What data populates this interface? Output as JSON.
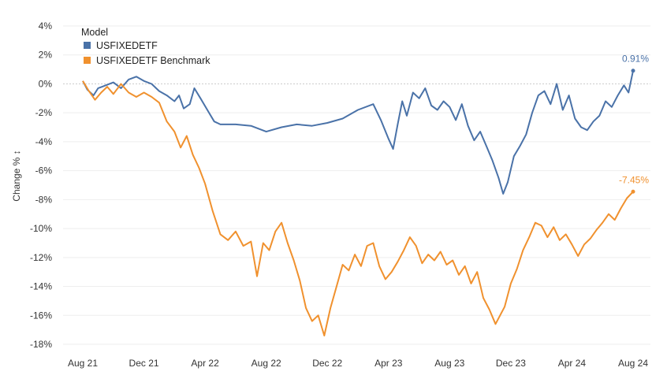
{
  "chart_data": {
    "type": "line",
    "title": "",
    "xlabel": "",
    "ylabel": "Change % ↕",
    "ylim": [
      -18,
      4
    ],
    "y_ticks": [
      4,
      2,
      0,
      -2,
      -4,
      -6,
      -8,
      -10,
      -12,
      -14,
      -16,
      -18
    ],
    "y_tick_labels": [
      "4%",
      "2%",
      "0%",
      "-2%",
      "-4%",
      "-6%",
      "-8%",
      "-10%",
      "-12%",
      "-14%",
      "-16%",
      "-18%"
    ],
    "x_range": [
      0,
      36
    ],
    "x_tick_labels": [
      {
        "month": 0,
        "label": "Aug 21"
      },
      {
        "month": 4,
        "label": "Dec 21"
      },
      {
        "month": 8,
        "label": "Apr 22"
      },
      {
        "month": 12,
        "label": "Aug 22"
      },
      {
        "month": 16,
        "label": "Dec 22"
      },
      {
        "month": 20,
        "label": "Apr 23"
      },
      {
        "month": 24,
        "label": "Aug 23"
      },
      {
        "month": 28,
        "label": "Dec 23"
      },
      {
        "month": 32,
        "label": "Apr 24"
      },
      {
        "month": 36,
        "label": "Aug 24"
      }
    ],
    "legend": {
      "title": "Model",
      "position": "top-left"
    },
    "series": [
      {
        "name": "USFIXEDETF",
        "color": "#4a72a8",
        "end_label": "0.91%",
        "points": [
          [
            0,
            0.2
          ],
          [
            0.3,
            -0.4
          ],
          [
            0.7,
            -0.8
          ],
          [
            1.0,
            -0.3
          ],
          [
            1.5,
            -0.1
          ],
          [
            2.0,
            0.1
          ],
          [
            2.5,
            -0.3
          ],
          [
            3.0,
            0.3
          ],
          [
            3.5,
            0.5
          ],
          [
            4.0,
            0.2
          ],
          [
            4.5,
            0.0
          ],
          [
            5.0,
            -0.5
          ],
          [
            5.5,
            -0.8
          ],
          [
            6.0,
            -1.2
          ],
          [
            6.3,
            -0.8
          ],
          [
            6.6,
            -1.7
          ],
          [
            7.0,
            -1.4
          ],
          [
            7.3,
            -0.3
          ],
          [
            7.7,
            -1.0
          ],
          [
            8.2,
            -1.9
          ],
          [
            8.6,
            -2.6
          ],
          [
            9.0,
            -2.8
          ],
          [
            10.0,
            -2.8
          ],
          [
            11.0,
            -2.9
          ],
          [
            12.0,
            -3.3
          ],
          [
            13.0,
            -3.0
          ],
          [
            14.0,
            -2.8
          ],
          [
            15.0,
            -2.9
          ],
          [
            16.0,
            -2.7
          ],
          [
            17.0,
            -2.4
          ],
          [
            18.0,
            -1.8
          ],
          [
            19.0,
            -1.4
          ],
          [
            19.5,
            -2.5
          ],
          [
            20.0,
            -3.8
          ],
          [
            20.3,
            -4.5
          ],
          [
            20.6,
            -2.8
          ],
          [
            20.9,
            -1.2
          ],
          [
            21.2,
            -2.2
          ],
          [
            21.6,
            -0.6
          ],
          [
            22.0,
            -1.0
          ],
          [
            22.4,
            -0.3
          ],
          [
            22.8,
            -1.5
          ],
          [
            23.2,
            -1.8
          ],
          [
            23.6,
            -1.2
          ],
          [
            24.0,
            -1.6
          ],
          [
            24.4,
            -2.5
          ],
          [
            24.8,
            -1.4
          ],
          [
            25.2,
            -2.9
          ],
          [
            25.6,
            -3.9
          ],
          [
            26.0,
            -3.3
          ],
          [
            26.4,
            -4.3
          ],
          [
            26.8,
            -5.3
          ],
          [
            27.2,
            -6.5
          ],
          [
            27.5,
            -7.6
          ],
          [
            27.8,
            -6.8
          ],
          [
            28.2,
            -5.0
          ],
          [
            28.6,
            -4.3
          ],
          [
            29.0,
            -3.5
          ],
          [
            29.4,
            -2.0
          ],
          [
            29.8,
            -0.8
          ],
          [
            30.2,
            -0.5
          ],
          [
            30.6,
            -1.4
          ],
          [
            31.0,
            0.0
          ],
          [
            31.4,
            -1.8
          ],
          [
            31.8,
            -0.8
          ],
          [
            32.2,
            -2.4
          ],
          [
            32.6,
            -3.0
          ],
          [
            33.0,
            -3.2
          ],
          [
            33.4,
            -2.6
          ],
          [
            33.8,
            -2.2
          ],
          [
            34.2,
            -1.2
          ],
          [
            34.6,
            -1.6
          ],
          [
            35.0,
            -0.8
          ],
          [
            35.4,
            -0.1
          ],
          [
            35.7,
            -0.6
          ],
          [
            36.0,
            0.91
          ]
        ]
      },
      {
        "name": "USFIXEDETF Benchmark",
        "color": "#f0912e",
        "end_label": "-7.45%",
        "points": [
          [
            0,
            0.2
          ],
          [
            0.4,
            -0.5
          ],
          [
            0.8,
            -1.1
          ],
          [
            1.2,
            -0.6
          ],
          [
            1.6,
            -0.2
          ],
          [
            2.0,
            -0.7
          ],
          [
            2.5,
            0.0
          ],
          [
            3.0,
            -0.6
          ],
          [
            3.5,
            -0.9
          ],
          [
            4.0,
            -0.6
          ],
          [
            4.5,
            -0.9
          ],
          [
            5.0,
            -1.3
          ],
          [
            5.5,
            -2.6
          ],
          [
            6.0,
            -3.3
          ],
          [
            6.4,
            -4.4
          ],
          [
            6.8,
            -3.6
          ],
          [
            7.2,
            -4.9
          ],
          [
            7.6,
            -5.8
          ],
          [
            8.0,
            -6.9
          ],
          [
            8.5,
            -8.8
          ],
          [
            9.0,
            -10.4
          ],
          [
            9.5,
            -10.8
          ],
          [
            10.0,
            -10.2
          ],
          [
            10.5,
            -11.2
          ],
          [
            11.0,
            -10.9
          ],
          [
            11.4,
            -13.3
          ],
          [
            11.8,
            -11.0
          ],
          [
            12.2,
            -11.5
          ],
          [
            12.6,
            -10.2
          ],
          [
            13.0,
            -9.6
          ],
          [
            13.4,
            -11.0
          ],
          [
            13.8,
            -12.2
          ],
          [
            14.2,
            -13.6
          ],
          [
            14.6,
            -15.5
          ],
          [
            15.0,
            -16.4
          ],
          [
            15.4,
            -16.0
          ],
          [
            15.8,
            -17.4
          ],
          [
            16.2,
            -15.5
          ],
          [
            16.6,
            -14.0
          ],
          [
            17.0,
            -12.5
          ],
          [
            17.4,
            -12.9
          ],
          [
            17.8,
            -11.8
          ],
          [
            18.2,
            -12.6
          ],
          [
            18.6,
            -11.2
          ],
          [
            19.0,
            -11.0
          ],
          [
            19.4,
            -12.6
          ],
          [
            19.8,
            -13.5
          ],
          [
            20.2,
            -13.0
          ],
          [
            20.6,
            -12.3
          ],
          [
            21.0,
            -11.5
          ],
          [
            21.4,
            -10.6
          ],
          [
            21.8,
            -11.2
          ],
          [
            22.2,
            -12.4
          ],
          [
            22.6,
            -11.8
          ],
          [
            23.0,
            -12.2
          ],
          [
            23.4,
            -11.6
          ],
          [
            23.8,
            -12.5
          ],
          [
            24.2,
            -12.2
          ],
          [
            24.6,
            -13.2
          ],
          [
            25.0,
            -12.6
          ],
          [
            25.4,
            -13.8
          ],
          [
            25.8,
            -13.0
          ],
          [
            26.2,
            -14.8
          ],
          [
            26.6,
            -15.6
          ],
          [
            27.0,
            -16.6
          ],
          [
            27.3,
            -16.0
          ],
          [
            27.6,
            -15.4
          ],
          [
            28.0,
            -13.8
          ],
          [
            28.4,
            -12.8
          ],
          [
            28.8,
            -11.5
          ],
          [
            29.2,
            -10.6
          ],
          [
            29.6,
            -9.6
          ],
          [
            30.0,
            -9.8
          ],
          [
            30.4,
            -10.6
          ],
          [
            30.8,
            -9.9
          ],
          [
            31.2,
            -10.8
          ],
          [
            31.6,
            -10.4
          ],
          [
            32.0,
            -11.1
          ],
          [
            32.4,
            -11.9
          ],
          [
            32.8,
            -11.1
          ],
          [
            33.2,
            -10.7
          ],
          [
            33.6,
            -10.1
          ],
          [
            34.0,
            -9.6
          ],
          [
            34.4,
            -9.0
          ],
          [
            34.8,
            -9.4
          ],
          [
            35.2,
            -8.6
          ],
          [
            35.6,
            -7.9
          ],
          [
            36.0,
            -7.45
          ]
        ]
      }
    ]
  }
}
